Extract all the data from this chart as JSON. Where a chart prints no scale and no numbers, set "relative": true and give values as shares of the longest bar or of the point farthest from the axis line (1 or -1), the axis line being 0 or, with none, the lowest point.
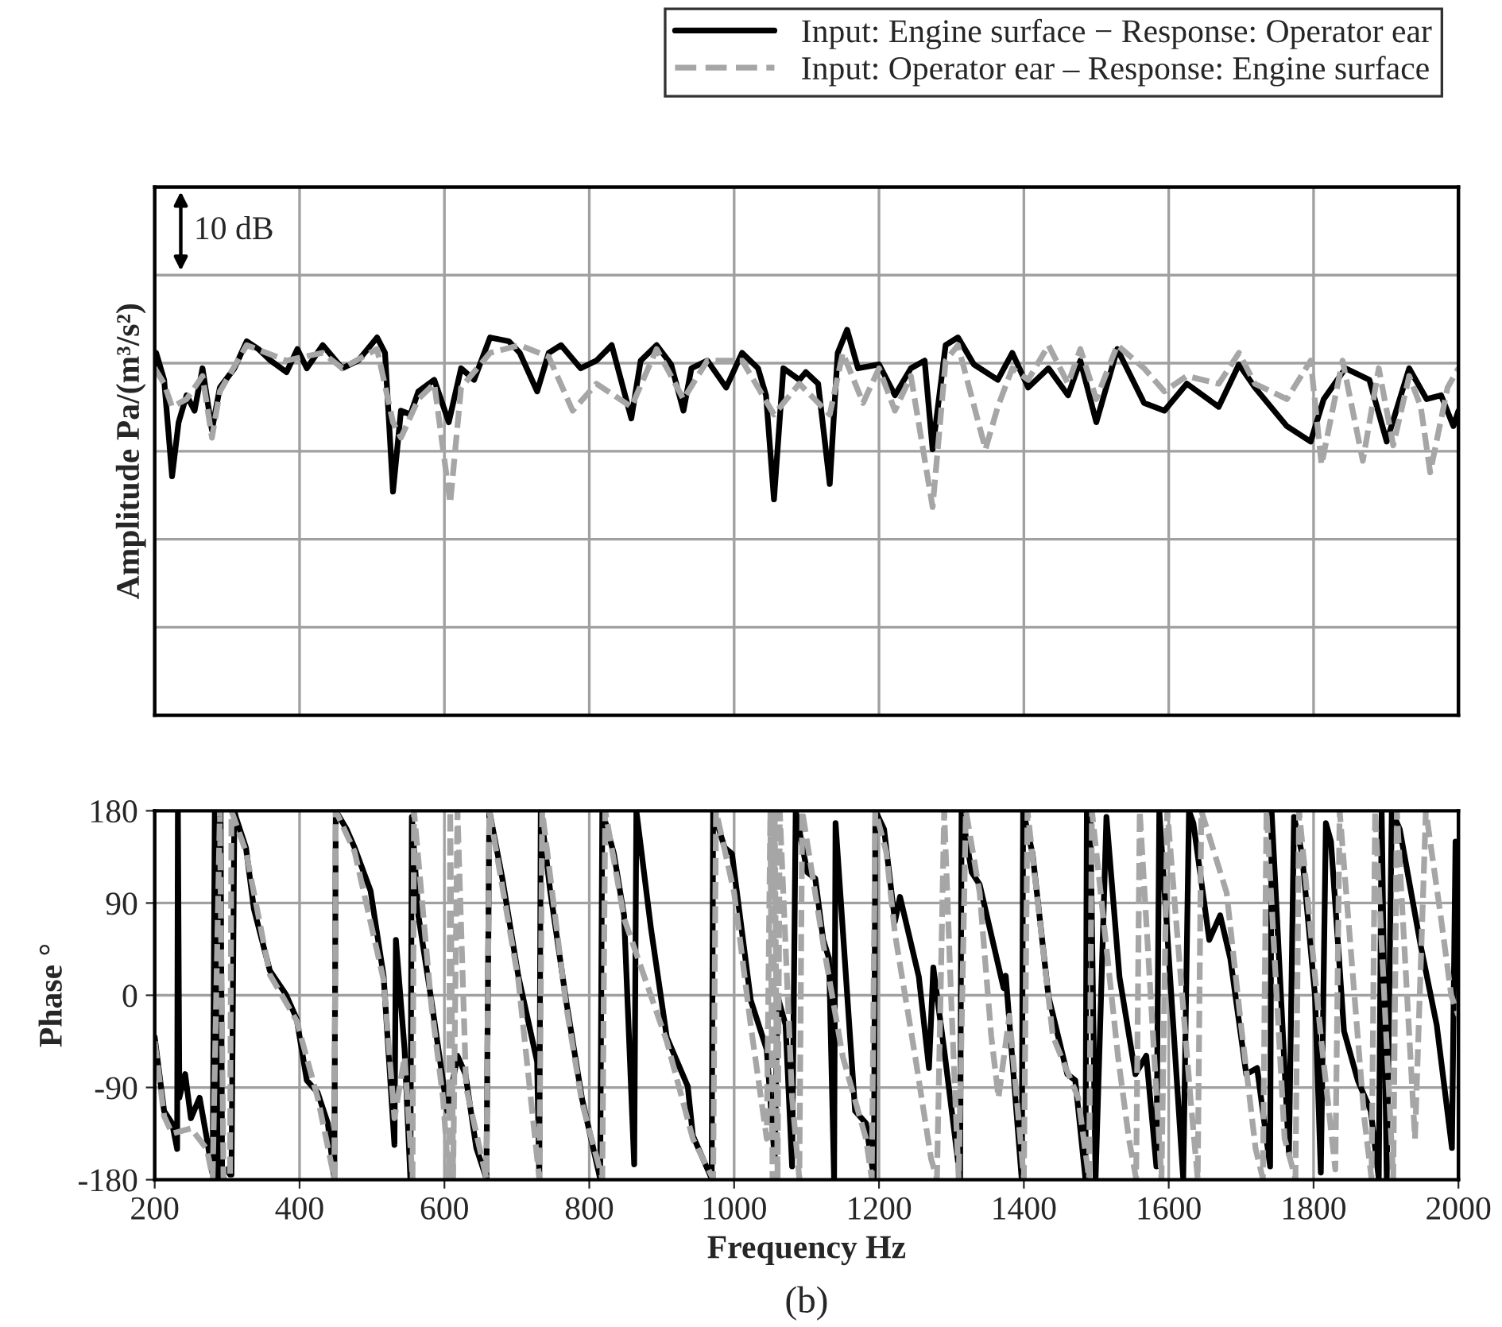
{
  "chart_data": [
    {
      "type": "line",
      "relative": true,
      "ylabel": "Amplitude Pa/(m³/s²)",
      "xlim": [
        200,
        2000
      ],
      "tick_labels": false,
      "grid": true,
      "legend": "top",
      "annotations": [
        "10 dB"
      ],
      "series": [
        {
          "name": "Input: Engine surface − Response: Operator ear",
          "color": "#000000",
          "line_style": "solid",
          "x": [
            200,
            202,
            213,
            224,
            233,
            244,
            255,
            266,
            279,
            290,
            310,
            327,
            343,
            360,
            382,
            397,
            410,
            432,
            459,
            481,
            507,
            518,
            529,
            540,
            553,
            564,
            586,
            606,
            623,
            641,
            663,
            689,
            704,
            728,
            744,
            761,
            788,
            810,
            831,
            858,
            871,
            893,
            913,
            930,
            941,
            963,
            989,
            1011,
            1033,
            1044,
            1055,
            1068,
            1090,
            1099,
            1116,
            1132,
            1143,
            1156,
            1171,
            1200,
            1222,
            1244,
            1263,
            1274,
            1292,
            1309,
            1331,
            1364,
            1384,
            1406,
            1434,
            1461,
            1478,
            1500,
            1529,
            1566,
            1594,
            1625,
            1669,
            1697,
            1719,
            1763,
            1796,
            1814,
            1844,
            1877,
            1901,
            1932,
            1956,
            1976,
            1993,
            2000
          ],
          "values": [
            0.91,
            0.94,
            0.87,
            0.62,
            0.76,
            0.83,
            0.79,
            0.9,
            0.74,
            0.85,
            0.9,
            0.97,
            0.95,
            0.92,
            0.89,
            0.95,
            0.9,
            0.96,
            0.9,
            0.92,
            0.98,
            0.94,
            0.58,
            0.79,
            0.78,
            0.84,
            0.87,
            0.76,
            0.9,
            0.87,
            0.98,
            0.97,
            0.94,
            0.84,
            0.94,
            0.96,
            0.9,
            0.92,
            0.96,
            0.77,
            0.92,
            0.96,
            0.91,
            0.79,
            0.9,
            0.92,
            0.85,
            0.94,
            0.9,
            0.83,
            0.56,
            0.9,
            0.87,
            0.89,
            0.86,
            0.6,
            0.94,
            1,
            0.9,
            0.91,
            0.83,
            0.9,
            0.92,
            0.69,
            0.96,
            0.98,
            0.91,
            0.87,
            0.94,
            0.85,
            0.9,
            0.83,
            0.92,
            0.76,
            0.95,
            0.81,
            0.79,
            0.86,
            0.8,
            0.91,
            0.85,
            0.75,
            0.71,
            0.82,
            0.9,
            0.87,
            0.71,
            0.9,
            0.82,
            0.83,
            0.75,
            0.79
          ]
        },
        {
          "name": "Input: Operator ear – Response: Engine surface",
          "color": "#a6a6a6",
          "line_style": "dashed",
          "x": [
            200,
            213,
            224,
            244,
            266,
            279,
            290,
            327,
            382,
            432,
            459,
            507,
            529,
            540,
            564,
            586,
            608,
            623,
            663,
            704,
            744,
            777,
            810,
            858,
            893,
            930,
            963,
            1011,
            1055,
            1090,
            1132,
            1150,
            1178,
            1200,
            1222,
            1244,
            1274,
            1292,
            1309,
            1347,
            1364,
            1384,
            1406,
            1434,
            1461,
            1478,
            1500,
            1529,
            1566,
            1594,
            1625,
            1669,
            1697,
            1719,
            1763,
            1796,
            1811,
            1840,
            1868,
            1890,
            1910,
            1932,
            1948,
            1961,
            1985,
            2000
          ],
          "values": [
            0.9,
            0.86,
            0.8,
            0.82,
            0.88,
            0.72,
            0.84,
            0.96,
            0.92,
            0.94,
            0.9,
            0.95,
            0.76,
            0.72,
            0.82,
            0.86,
            0.55,
            0.85,
            0.94,
            0.96,
            0.93,
            0.79,
            0.86,
            0.8,
            0.95,
            0.82,
            0.92,
            0.92,
            0.78,
            0.86,
            0.78,
            0.94,
            0.81,
            0.9,
            0.79,
            0.88,
            0.54,
            0.92,
            0.96,
            0.69,
            0.8,
            0.9,
            0.87,
            0.96,
            0.86,
            0.95,
            0.82,
            0.96,
            0.9,
            0.84,
            0.88,
            0.86,
            0.94,
            0.86,
            0.82,
            0.92,
            0.65,
            0.92,
            0.66,
            0.9,
            0.7,
            0.88,
            0.8,
            0.63,
            0.85,
            0.9
          ]
        }
      ]
    },
    {
      "type": "line",
      "xlabel": "Frequency Hz",
      "ylabel": "Phase °",
      "xlim": [
        200,
        2000
      ],
      "xticks": [
        200,
        400,
        600,
        800,
        1000,
        1200,
        1400,
        1600,
        1800,
        2000
      ],
      "ylim": [
        -180,
        180
      ],
      "yticks": [
        -180,
        -90,
        0,
        90,
        180
      ],
      "grid": true,
      "annotations": [
        "(b)"
      ],
      "series": [
        {
          "color": "#000000",
          "line_style": "solid",
          "x": [
            200,
            213,
            224,
            231,
            232,
            234,
            242,
            250,
            262,
            272,
            280,
            283,
            285,
            287,
            289,
            291,
            293,
            300,
            304,
            306,
            310,
            312,
            326,
            337,
            359,
            381,
            396,
            410,
            425,
            439,
            448,
            450,
            465,
            476,
            498,
            516,
            531,
            533,
            545,
            553,
            555,
            564,
            582,
            604,
            618,
            629,
            644,
            658,
            662,
            680,
            702,
            728,
            731,
            733,
            746,
            768,
            790,
            815,
            818,
            834,
            848,
            862,
            865,
            885,
            907,
            936,
            943,
            969,
            971,
            987,
            997,
            1023,
            1045,
            1056,
            1060,
            1071,
            1080,
            1085,
            1101,
            1112,
            1123,
            1131,
            1138,
            1140,
            1167,
            1182,
            1193,
            1195,
            1207,
            1222,
            1229,
            1255,
            1269,
            1275,
            1291,
            1312,
            1314,
            1328,
            1339,
            1372,
            1375,
            1397,
            1399,
            1412,
            1434,
            1460,
            1471,
            1485,
            1487,
            1492,
            1499,
            1514,
            1532,
            1554,
            1569,
            1583,
            1587,
            1620,
            1628,
            1634,
            1656,
            1671,
            1685,
            1707,
            1722,
            1740,
            1742,
            1766,
            1773,
            1784,
            1802,
            1810,
            1817,
            1824,
            1842,
            1861,
            1879,
            1890,
            1894,
            1901,
            1908,
            1919,
            1948,
            1970,
            1991,
            1996
          ],
          "values": [
            -41,
            -113,
            -125,
            -150,
            180,
            -100,
            -77,
            -120,
            -100,
            -140,
            -175,
            180,
            -180,
            180,
            -180,
            180,
            -170,
            -170,
            -175,
            -175,
            180,
            174,
            144,
            84,
            24,
            1,
            -23,
            -83,
            -95,
            -125,
            -179,
            180,
            162,
            144,
            102,
            19,
            -146,
            54,
            -53,
            -179,
            174,
            78,
            -5,
            -113,
            -59,
            -77,
            -149,
            -179,
            180,
            114,
            19,
            -65,
            -179,
            180,
            102,
            -5,
            -101,
            -179,
            180,
            138,
            78,
            -165,
            180,
            66,
            -41,
            -89,
            -137,
            -179,
            180,
            144,
            138,
            -5,
            -53,
            -161,
            -1,
            -29,
            -167,
            180,
            120,
            114,
            54,
            36,
            -179,
            168,
            -113,
            -125,
            -179,
            180,
            162,
            72,
            96,
            18,
            -71,
            27,
            -59,
            -179,
            180,
            120,
            108,
            7,
            19,
            -179,
            180,
            138,
            -1,
            -77,
            -83,
            -179,
            180,
            168,
            -179,
            174,
            18,
            -77,
            -59,
            -167,
            180,
            -179,
            180,
            168,
            54,
            78,
            36,
            -77,
            -71,
            -167,
            180,
            -155,
            174,
            138,
            -1,
            -173,
            168,
            150,
            -35,
            -83,
            -113,
            -179,
            180,
            -179,
            180,
            162,
            48,
            -29,
            -149,
            150
          ]
        },
        {
          "color": "#a6a6a6",
          "line_style": "dashed",
          "x": [
            200,
            213,
            224,
            250,
            272,
            280,
            290,
            295,
            304,
            306,
            326,
            359,
            396,
            425,
            448,
            450,
            476,
            516,
            531,
            545,
            556,
            558,
            582,
            598,
            606,
            608,
            612,
            618,
            630,
            658,
            662,
            702,
            731,
            735,
            768,
            790,
            818,
            822,
            848,
            907,
            943,
            971,
            975,
            1000,
            1023,
            1045,
            1050,
            1053,
            1056,
            1060,
            1063,
            1080,
            1090,
            1094,
            1123,
            1150,
            1182,
            1190,
            1195,
            1210,
            1222,
            1250,
            1272,
            1280,
            1290,
            1300,
            1310,
            1320,
            1339,
            1355,
            1365,
            1380,
            1400,
            1405,
            1440,
            1475,
            1490,
            1494,
            1530,
            1545,
            1555,
            1560,
            1590,
            1598,
            1630,
            1640,
            1645,
            1680,
            1700,
            1720,
            1730,
            1735,
            1760,
            1775,
            1780,
            1810,
            1830,
            1836,
            1870,
            1880,
            1885,
            1910,
            1915,
            1940,
            1955,
            1975,
            1990,
            2000
          ],
          "values": [
            -45,
            -118,
            -135,
            -130,
            -150,
            -178,
            180,
            -180,
            -178,
            180,
            140,
            20,
            -25,
            -100,
            -179,
            180,
            140,
            15,
            -120,
            -60,
            -179,
            180,
            -10,
            -100,
            -179,
            180,
            -179,
            180,
            -90,
            -179,
            180,
            15,
            -179,
            180,
            -10,
            -105,
            -179,
            180,
            75,
            -45,
            -140,
            -179,
            180,
            100,
            -30,
            -140,
            180,
            -180,
            180,
            -180,
            180,
            -100,
            -179,
            180,
            50,
            -60,
            -140,
            -179,
            180,
            140,
            60,
            -60,
            -160,
            -179,
            180,
            -10,
            -179,
            180,
            100,
            -40,
            -100,
            -20,
            -179,
            180,
            -40,
            -100,
            -179,
            180,
            -60,
            -140,
            -179,
            180,
            -179,
            180,
            -100,
            -179,
            180,
            100,
            -30,
            -150,
            -179,
            180,
            -140,
            -179,
            180,
            -40,
            -170,
            180,
            -120,
            -179,
            180,
            -179,
            180,
            -140,
            180,
            80,
            0,
            -20
          ]
        }
      ]
    }
  ]
}
